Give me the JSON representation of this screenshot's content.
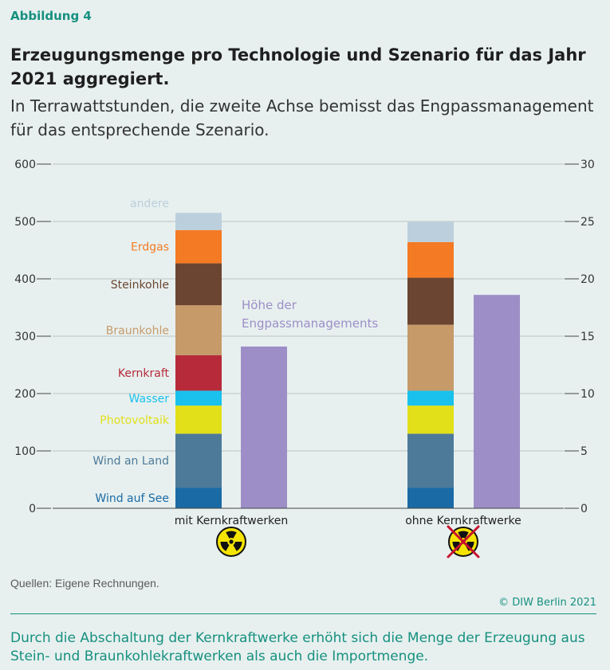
{
  "figure_label": "Abbildung 4",
  "title": "Erzeugungsmenge pro Technologie und Szenario für das Jahr 2021 aggregiert.",
  "subtitle": "In Terrawattstunden, die zweite Achse bemisst das Engpass­management für das entsprechende Szenario.",
  "source": "Quellen: Eigene Rechnungen.",
  "copyright": "© DIW Berlin 2021",
  "caption": "Durch die Abschaltung der Kernkraftwerke erhöht sich die Menge der Erzeugung aus Stein- und Braunkohlekraftwerken als auch die Importmenge.",
  "icons": [
    "radiation-icon",
    "radiation-crossed-icon"
  ],
  "chart_data": {
    "type": "bar",
    "stacked": true,
    "categories": [
      "mit Kernkraftwerken",
      "ohne Kernkraftwerke"
    ],
    "ylim": [
      0,
      600
    ],
    "yticks": [
      0,
      100,
      200,
      300,
      400,
      500,
      600
    ],
    "y2lim": [
      0,
      30
    ],
    "y2ticks": [
      0,
      5,
      10,
      15,
      20,
      25,
      30
    ],
    "grid": true,
    "series": [
      {
        "name": "Wind auf See",
        "color": "#1a6aa5",
        "values": [
          36,
          36
        ]
      },
      {
        "name": "Wind an Land",
        "color": "#4d7a99",
        "values": [
          94,
          94
        ]
      },
      {
        "name": "Photovoltaik",
        "color": "#e2e019",
        "values": [
          49,
          49
        ]
      },
      {
        "name": "Wasser",
        "color": "#1ac1ec",
        "values": [
          26,
          26
        ]
      },
      {
        "name": "Kernkraft",
        "color": "#b62a39",
        "values": [
          62,
          0
        ]
      },
      {
        "name": "Braunkohle",
        "color": "#c69a69",
        "values": [
          87,
          115
        ]
      },
      {
        "name": "Steinkohle",
        "color": "#6b4531",
        "values": [
          73,
          82
        ]
      },
      {
        "name": "Erdgas",
        "color": "#f47a24",
        "values": [
          58,
          62
        ]
      },
      {
        "name": "andere",
        "color": "#bccfdc",
        "values": [
          30,
          35
        ]
      }
    ],
    "secondary_series": {
      "name": "Höhe der Engpassmanagements",
      "axis": "right",
      "color": "#9d8ec7",
      "values": [
        14.1,
        18.6
      ]
    }
  }
}
